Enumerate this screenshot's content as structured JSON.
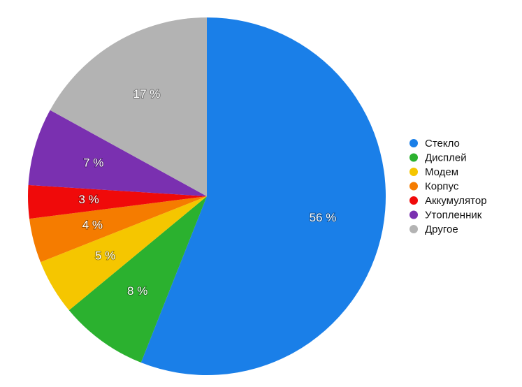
{
  "chart_data": {
    "type": "pie",
    "categories": [
      "Стекло",
      "Дисплей",
      "Модем",
      "Корпус",
      "Аккумулятор",
      "Утопленник",
      "Другое"
    ],
    "values": [
      56,
      8,
      5,
      4,
      3,
      7,
      17
    ],
    "value_labels": [
      "56 %",
      "8 %",
      "5 %",
      "4 %",
      "3 %",
      "7 %",
      "17 %"
    ],
    "colors": [
      "#1a7fe8",
      "#2bb12f",
      "#f5c600",
      "#f57c00",
      "#f00a0a",
      "#7a30b0",
      "#b3b3b3"
    ],
    "legend": "right"
  }
}
